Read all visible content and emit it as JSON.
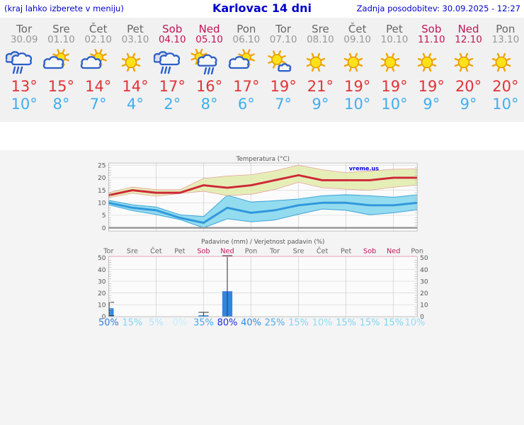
{
  "header": {
    "left_note": "(kraj lahko izberete v meniju)",
    "title": "Karlovac 14 dni",
    "updated": "Zadnja posodobitev: 30.09.2025 - 12:27"
  },
  "days": [
    {
      "name": "Tor",
      "date": "30.09",
      "weekend": false,
      "icon": "rain",
      "tmax": "13°",
      "tmin": "10°"
    },
    {
      "name": "Sre",
      "date": "01.10",
      "weekend": false,
      "icon": "sun-cloud",
      "tmax": "15°",
      "tmin": "8°"
    },
    {
      "name": "Čet",
      "date": "02.10",
      "weekend": false,
      "icon": "sun-cloud",
      "tmax": "14°",
      "tmin": "7°"
    },
    {
      "name": "Pet",
      "date": "03.10",
      "weekend": false,
      "icon": "sun",
      "tmax": "14°",
      "tmin": "4°"
    },
    {
      "name": "Sob",
      "date": "04.10",
      "weekend": true,
      "icon": "rain",
      "tmax": "17°",
      "tmin": "2°"
    },
    {
      "name": "Ned",
      "date": "05.10",
      "weekend": true,
      "icon": "sun-rain",
      "tmax": "16°",
      "tmin": "8°"
    },
    {
      "name": "Pon",
      "date": "06.10",
      "weekend": false,
      "icon": "sun-cloud",
      "tmax": "17°",
      "tmin": "6°"
    },
    {
      "name": "Tor",
      "date": "07.10",
      "weekend": false,
      "icon": "sun-small-cloud",
      "tmax": "19°",
      "tmin": "7°"
    },
    {
      "name": "Sre",
      "date": "08.10",
      "weekend": false,
      "icon": "sun",
      "tmax": "21°",
      "tmin": "9°"
    },
    {
      "name": "Čet",
      "date": "09.10",
      "weekend": false,
      "icon": "sun",
      "tmax": "19°",
      "tmin": "10°"
    },
    {
      "name": "Pet",
      "date": "10.10",
      "weekend": false,
      "icon": "sun",
      "tmax": "19°",
      "tmin": "10°"
    },
    {
      "name": "Sob",
      "date": "11.10",
      "weekend": true,
      "icon": "sun",
      "tmax": "19°",
      "tmin": "9°"
    },
    {
      "name": "Ned",
      "date": "12.10",
      "weekend": true,
      "icon": "sun",
      "tmax": "20°",
      "tmin": "9°"
    },
    {
      "name": "Pon",
      "date": "13.10",
      "weekend": false,
      "icon": "sun",
      "tmax": "20°",
      "tmin": "10°"
    }
  ],
  "chart_data": [
    {
      "type": "line",
      "title": "Temperatura (°C)",
      "watermark": "vreme.us",
      "categories": [
        "Tor",
        "Sre",
        "Čet",
        "Pet",
        "Sob",
        "Ned",
        "Pon",
        "Tor",
        "Sre",
        "Čet",
        "Pet",
        "Sob",
        "Ned",
        "Pon"
      ],
      "yticks": [
        0,
        5,
        10,
        15,
        20,
        25
      ],
      "ylim": [
        -1.3,
        25.9
      ],
      "grid": true,
      "zero_line": true,
      "series": [
        {
          "name": "max-temp",
          "role": "line",
          "color": "#ce2737",
          "values": [
            13,
            15,
            14,
            14,
            17,
            16,
            17,
            19,
            21,
            19,
            19,
            19,
            20,
            20
          ]
        },
        {
          "name": "max-temp-range",
          "role": "band",
          "fill": "#e1ebaa",
          "edge": "#e69292",
          "high": [
            14,
            16.3,
            15.2,
            15.2,
            19.7,
            20.7,
            21.2,
            22.8,
            25,
            23.2,
            22,
            22.7,
            23.4,
            23.5
          ],
          "low": [
            12,
            13.8,
            12.6,
            13.7,
            14.6,
            12.9,
            13.4,
            15.3,
            18.2,
            16,
            15.4,
            15,
            16.2,
            17.1
          ]
        },
        {
          "name": "min-temp",
          "role": "line",
          "color": "#2f97dc",
          "values": [
            10,
            8,
            7,
            4,
            2,
            8,
            6,
            7,
            9,
            10,
            10,
            9,
            9,
            10
          ]
        },
        {
          "name": "min-temp-range",
          "role": "band",
          "fill": "#93dbee",
          "edge": "#3ea6da",
          "high": [
            11,
            9.2,
            8.3,
            5.2,
            4.5,
            13,
            10.3,
            10.8,
            11.5,
            12.8,
            13.2,
            12.8,
            12.2,
            13.2
          ],
          "low": [
            9.2,
            6.9,
            5.3,
            3.3,
            0,
            3.6,
            2.4,
            3.1,
            5.4,
            7.5,
            7,
            5.2,
            6,
            7.2
          ]
        }
      ]
    },
    {
      "type": "bar",
      "title": "Padavine (mm) / Verjetnost padavin (%)",
      "categories": [
        "Tor",
        "Sre",
        "Čet",
        "Pet",
        "Sob",
        "Ned",
        "Pon",
        "Tor",
        "Sre",
        "Čet",
        "Pet",
        "Sob",
        "Ned",
        "Pon"
      ],
      "weekend_indices": [
        4,
        5,
        11,
        12
      ],
      "yticks": [
        0,
        10,
        20,
        30,
        40,
        50
      ],
      "ylim": [
        0,
        51.5
      ],
      "grid": true,
      "bar_color": "#2e86e0",
      "values_mm": [
        7,
        0,
        0,
        0,
        1,
        21.5,
        0,
        0,
        0,
        0,
        0,
        0,
        0,
        0
      ],
      "range_max_mm": [
        12,
        null,
        null,
        null,
        3.5,
        52,
        null,
        null,
        null,
        null,
        null,
        null,
        null,
        null
      ],
      "range_min_mm": [
        0.8,
        null,
        null,
        null,
        0,
        0,
        null,
        null,
        null,
        null,
        null,
        null,
        null,
        null
      ],
      "prob_percent": [
        50,
        15,
        5,
        0,
        35,
        80,
        40,
        25,
        15,
        10,
        15,
        15,
        15,
        10
      ]
    }
  ],
  "colors": {
    "header_blue": "#0000cc",
    "weekend": "#c11552",
    "tmax_text": "#e13335",
    "tmin_text": "#41aeed",
    "chart_text": "#555555",
    "day_text": "#666666",
    "date_text": "#979797",
    "grid": "#d6d6d6",
    "vgrid": "#c9c9c9",
    "border": "#a5a5a5",
    "minor_tick": "#b5b5b5",
    "zero_line": "#8f8f8f",
    "plot_bg": "#fbfbfb",
    "whisker": "#3f3f3f",
    "precip_top_border": "#e6a0b4",
    "watermark_blue": "#0000e6",
    "prob_scale": {
      "0": "#c7edfa",
      "5": "#b0e5f8",
      "10": "#93dbf4",
      "15": "#80d4f2",
      "25": "#4fabe9",
      "35": "#4ba5e7",
      "40": "#2f8ce2",
      "50": "#2b7de0",
      "80": "#1c2ed6"
    }
  }
}
